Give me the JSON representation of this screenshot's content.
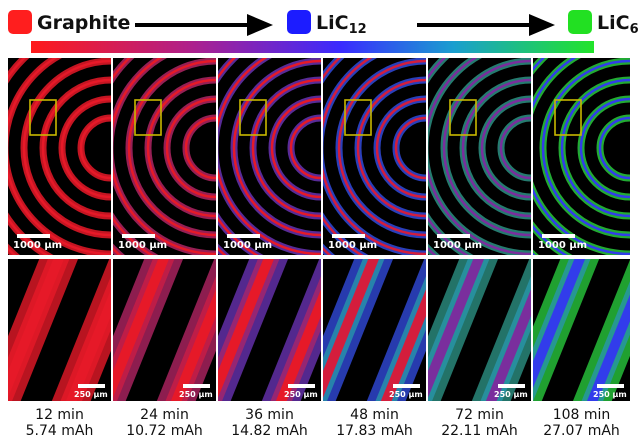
{
  "legend": {
    "items": [
      {
        "label": "Graphite",
        "sub": "",
        "color": "#ff1e1e"
      },
      {
        "label": "LiC",
        "sub": "12",
        "color": "#1c1cff"
      },
      {
        "label": "LiC",
        "sub": "6",
        "color": "#22e022"
      }
    ]
  },
  "overview_scale_label": "1000 µm",
  "zoom_scale_label": "250 µm",
  "panels": [
    {
      "time": "12 min",
      "capacity": "5.74 mAh",
      "frac": 0.0
    },
    {
      "time": "24 min",
      "capacity": "10.72 mAh",
      "frac": 0.15
    },
    {
      "time": "36 min",
      "capacity": "14.82 mAh",
      "frac": 0.35
    },
    {
      "time": "48 min",
      "capacity": "17.83 mAh",
      "frac": 0.55
    },
    {
      "time": "72 min",
      "capacity": "22.11 mAh",
      "frac": 0.8
    },
    {
      "time": "108 min",
      "capacity": "27.07 mAh",
      "frac": 1.0
    }
  ]
}
